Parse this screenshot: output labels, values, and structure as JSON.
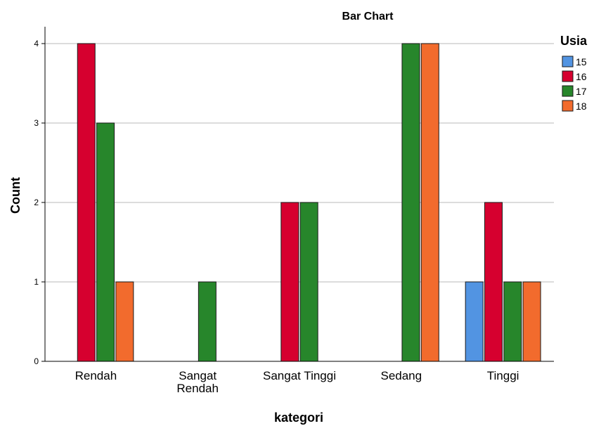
{
  "chart_data": {
    "type": "bar",
    "title": "Bar Chart",
    "xlabel": "kategori",
    "ylabel": "Count",
    "categories": [
      [
        "Rendah"
      ],
      [
        "Sangat",
        "Rendah"
      ],
      [
        "Sangat Tinggi"
      ],
      [
        "Sedang"
      ],
      [
        "Tinggi"
      ]
    ],
    "series": [
      {
        "name": "15",
        "color": "#5294e2",
        "values": [
          0,
          0,
          0,
          0,
          1
        ]
      },
      {
        "name": "16",
        "color": "#d6002f",
        "values": [
          4,
          0,
          2,
          0,
          2
        ]
      },
      {
        "name": "17",
        "color": "#27862b",
        "values": [
          3,
          1,
          2,
          4,
          1
        ]
      },
      {
        "name": "18",
        "color": "#f26b2d",
        "values": [
          1,
          0,
          0,
          4,
          1
        ]
      }
    ],
    "yticks": [
      "0",
      "1",
      "2",
      "3",
      "4"
    ],
    "ylim": [
      0,
      4
    ],
    "grid": true,
    "legend": {
      "title": "Usia",
      "placement": "right"
    }
  }
}
